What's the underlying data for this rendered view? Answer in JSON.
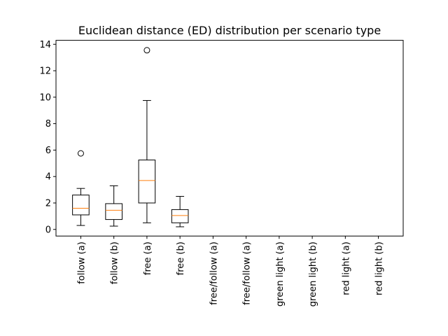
{
  "chart_data": {
    "type": "boxplot",
    "title": "Euclidean distance (ED) distribution per scenario type",
    "xlabel": "",
    "ylabel": "",
    "ylim": [
      -0.5,
      14.3
    ],
    "yticks": [
      0,
      2,
      4,
      6,
      8,
      10,
      12,
      14
    ],
    "grid": false,
    "legend": "none",
    "categories": [
      "follow (a)",
      "follow (b)",
      "free (a)",
      "free (b)",
      "free/follow (a)",
      "free/follow (a)",
      "green light (a)",
      "green light (b)",
      "red light (a)",
      "red light (b)"
    ],
    "boxes": [
      {
        "whisker_low": 0.3,
        "q1": 1.1,
        "median": 1.6,
        "q3": 2.6,
        "whisker_high": 3.1,
        "outliers": [
          5.75
        ]
      },
      {
        "whisker_low": 0.25,
        "q1": 0.75,
        "median": 1.45,
        "q3": 1.95,
        "whisker_high": 3.3,
        "outliers": []
      },
      {
        "whisker_low": 0.5,
        "q1": 2.0,
        "median": 3.7,
        "q3": 5.25,
        "whisker_high": 9.75,
        "outliers": [
          13.55
        ]
      },
      {
        "whisker_low": 0.2,
        "q1": 0.5,
        "median": 1.05,
        "q3": 1.5,
        "whisker_high": 2.5,
        "outliers": []
      },
      null,
      null,
      null,
      null,
      null,
      null
    ],
    "colors": {
      "box": "#000000",
      "median": "#ff7f0e",
      "outlier": "#000000"
    }
  }
}
